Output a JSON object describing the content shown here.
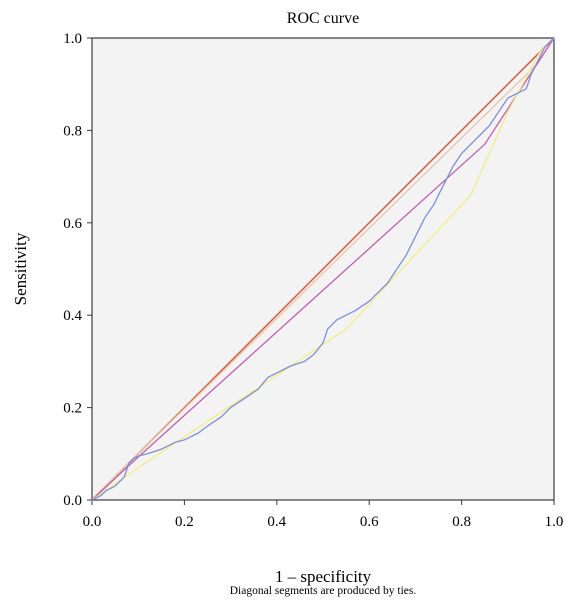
{
  "chart_data": {
    "type": "line",
    "title": "ROC curve",
    "xlabel": "1 – specificity",
    "ylabel": "Sensitivity",
    "footnote": "Diagonal segments are produced by ties.",
    "xlim": [
      0,
      1
    ],
    "ylim": [
      0,
      1
    ],
    "xticks": [
      "0.0",
      "0.2",
      "0.4",
      "0.6",
      "0.8",
      "1.0"
    ],
    "yticks": [
      "0.0",
      "0.2",
      "0.4",
      "0.6",
      "0.8",
      "1.0"
    ],
    "grid": false,
    "plot_background": "#f3f3f3",
    "series": [
      {
        "color": "#d4634e",
        "x": [
          0,
          1
        ],
        "y": [
          0,
          1
        ]
      },
      {
        "color": "#e6c7a8",
        "x": [
          0,
          0.1,
          0.96,
          1
        ],
        "y": [
          0,
          0.1,
          0.94,
          1
        ]
      },
      {
        "color": "#c05fb0",
        "x": [
          0,
          0.08,
          0.85,
          1
        ],
        "y": [
          0,
          0.075,
          0.77,
          1
        ]
      },
      {
        "color": "#f2ec88",
        "x": [
          0,
          0.1,
          0.55,
          0.82,
          0.9,
          0.97,
          1
        ],
        "y": [
          0,
          0.07,
          0.37,
          0.66,
          0.84,
          0.97,
          1
        ]
      },
      {
        "color": "#7f8fd6",
        "x": [
          0,
          0.02,
          0.03,
          0.05,
          0.07,
          0.08,
          0.09,
          0.1,
          0.12,
          0.15,
          0.18,
          0.2,
          0.23,
          0.25,
          0.28,
          0.3,
          0.33,
          0.36,
          0.38,
          0.4,
          0.43,
          0.46,
          0.48,
          0.5,
          0.51,
          0.53,
          0.55,
          0.57,
          0.6,
          0.62,
          0.64,
          0.66,
          0.68,
          0.7,
          0.72,
          0.74,
          0.76,
          0.78,
          0.8,
          0.82,
          0.84,
          0.86,
          0.88,
          0.9,
          0.92,
          0.94,
          0.95,
          0.97,
          0.98,
          1
        ],
        "y": [
          0,
          0.01,
          0.02,
          0.03,
          0.05,
          0.08,
          0.09,
          0.095,
          0.1,
          0.11,
          0.125,
          0.13,
          0.145,
          0.16,
          0.18,
          0.2,
          0.22,
          0.24,
          0.265,
          0.275,
          0.29,
          0.3,
          0.315,
          0.34,
          0.37,
          0.39,
          0.4,
          0.41,
          0.43,
          0.45,
          0.47,
          0.5,
          0.53,
          0.57,
          0.61,
          0.64,
          0.68,
          0.72,
          0.75,
          0.77,
          0.79,
          0.81,
          0.84,
          0.87,
          0.88,
          0.89,
          0.92,
          0.96,
          0.98,
          1
        ]
      }
    ]
  }
}
